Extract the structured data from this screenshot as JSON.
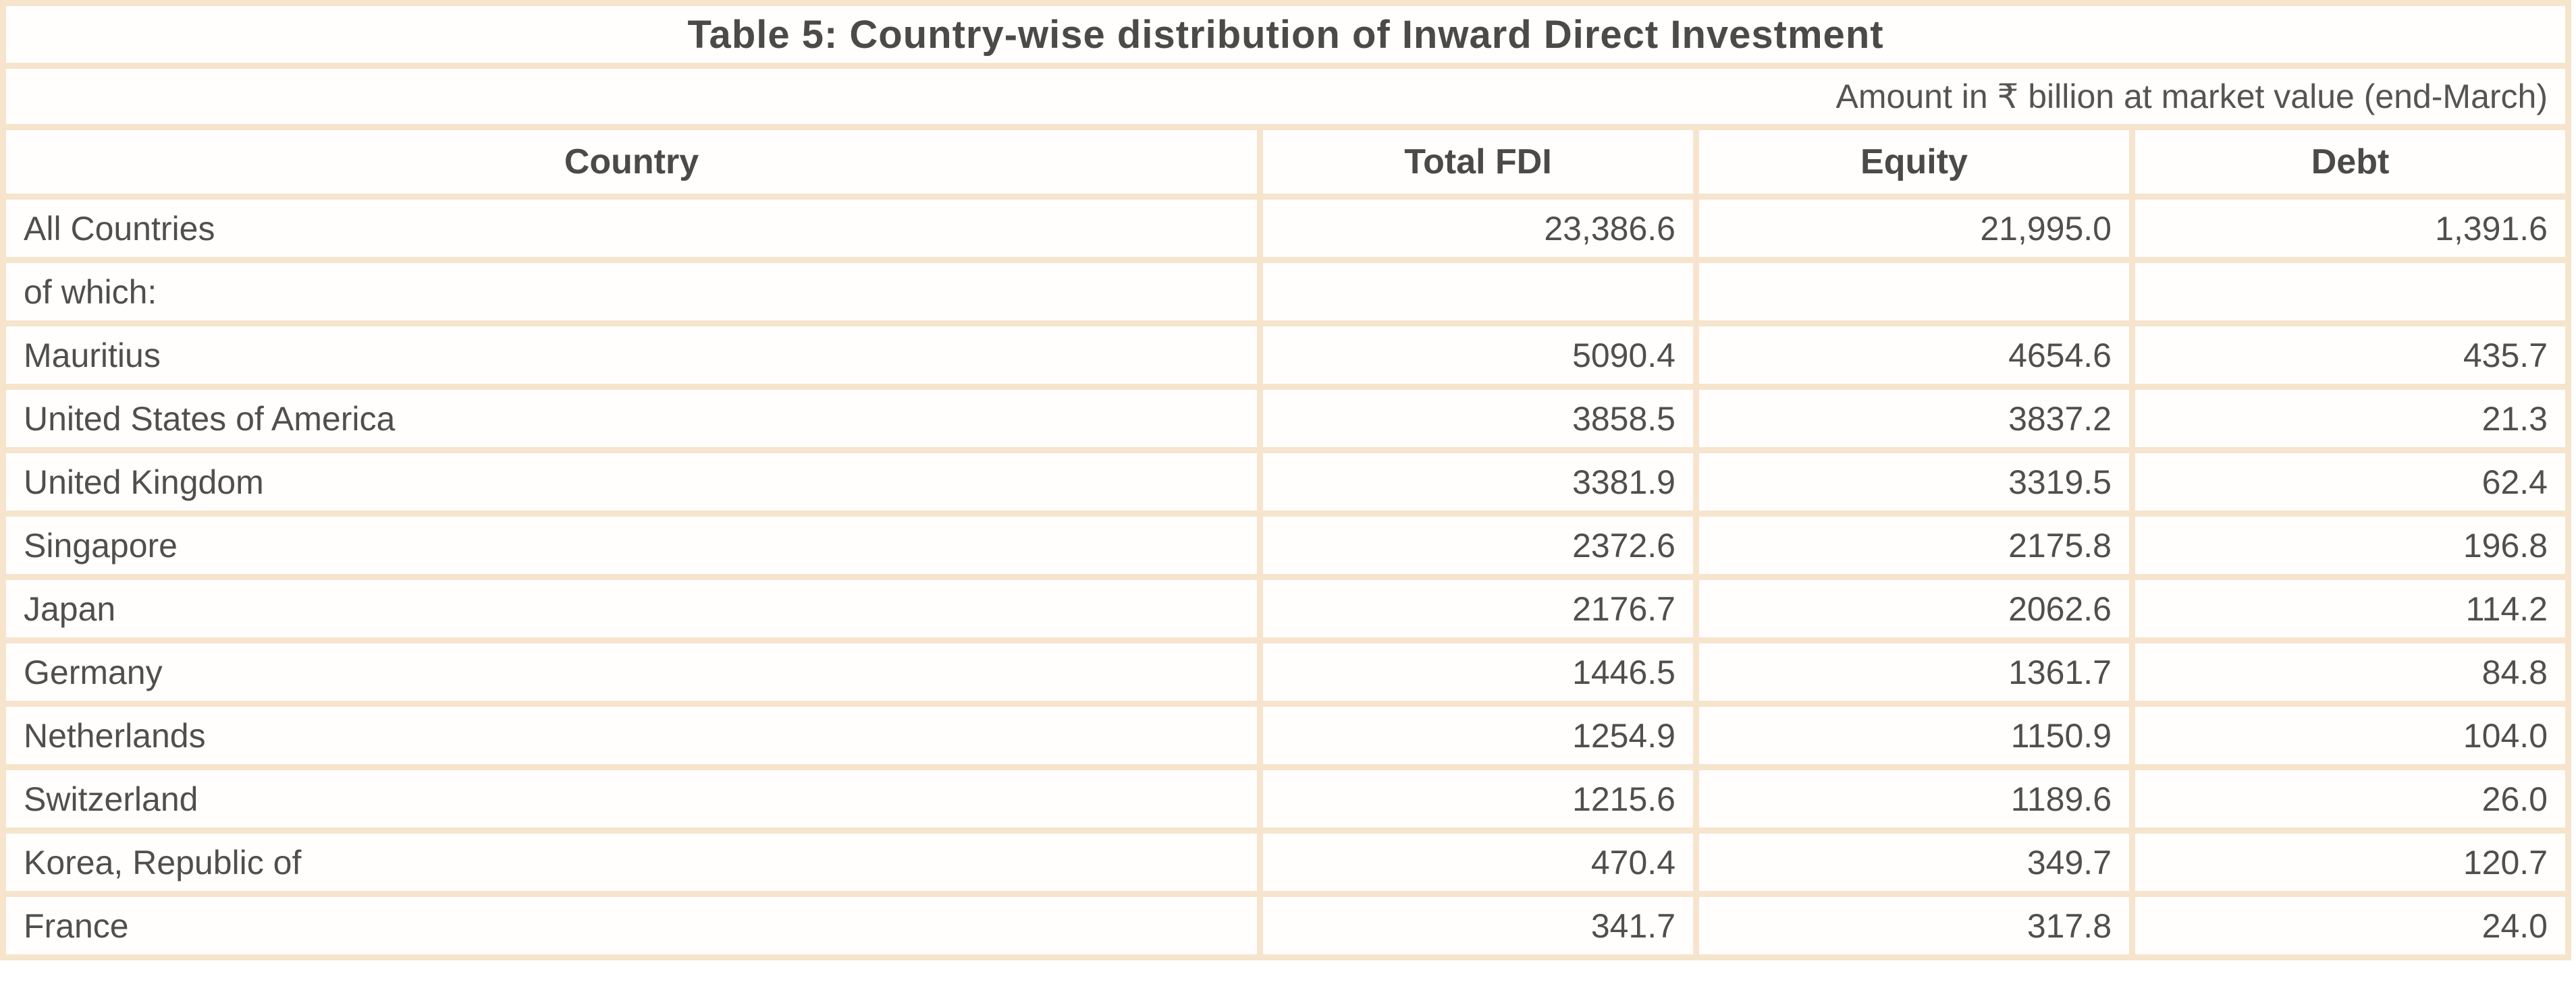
{
  "table": {
    "title": "Table 5: Country-wise distribution of Inward Direct Investment",
    "subtitle": "Amount in ₹ billion at market value (end-March)",
    "columns": {
      "country": "Country",
      "total_fdi": "Total FDI",
      "equity": "Equity",
      "debt": "Debt"
    },
    "rows": [
      {
        "country": "All Countries",
        "total_fdi": "23,386.6",
        "equity": "21,995.0",
        "debt": "1,391.6"
      },
      {
        "country": "of which:",
        "total_fdi": "",
        "equity": "",
        "debt": ""
      },
      {
        "country": "Mauritius",
        "total_fdi": "5090.4",
        "equity": "4654.6",
        "debt": "435.7"
      },
      {
        "country": "United States of America",
        "total_fdi": "3858.5",
        "equity": "3837.2",
        "debt": "21.3"
      },
      {
        "country": "United Kingdom",
        "total_fdi": "3381.9",
        "equity": "3319.5",
        "debt": "62.4"
      },
      {
        "country": "Singapore",
        "total_fdi": "2372.6",
        "equity": "2175.8",
        "debt": "196.8"
      },
      {
        "country": "Japan",
        "total_fdi": "2176.7",
        "equity": "2062.6",
        "debt": "114.2"
      },
      {
        "country": "Germany",
        "total_fdi": "1446.5",
        "equity": "1361.7",
        "debt": "84.8"
      },
      {
        "country": "Netherlands",
        "total_fdi": "1254.9",
        "equity": "1150.9",
        "debt": "104.0"
      },
      {
        "country": "Switzerland",
        "total_fdi": "1215.6",
        "equity": "1189.6",
        "debt": "26.0"
      },
      {
        "country": "Korea, Republic of",
        "total_fdi": "470.4",
        "equity": "349.7",
        "debt": "120.7"
      },
      {
        "country": "France",
        "total_fdi": "341.7",
        "equity": "317.8",
        "debt": "24.0"
      }
    ],
    "colors": {
      "border": "#f6e4cd",
      "text": "#514f4d",
      "background": "#ffffff"
    }
  },
  "chart_data": {
    "type": "table",
    "title": "Table 5: Country-wise distribution of Inward Direct Investment",
    "subtitle": "Amount in ₹ billion at market value (end-March)",
    "categories": [
      "All Countries",
      "of which:",
      "Mauritius",
      "United States of America",
      "United Kingdom",
      "Singapore",
      "Japan",
      "Germany",
      "Netherlands",
      "Switzerland",
      "Korea, Republic of",
      "France"
    ],
    "series": [
      {
        "name": "Total FDI",
        "values": [
          23386.6,
          null,
          5090.4,
          3858.5,
          3381.9,
          2372.6,
          2176.7,
          1446.5,
          1254.9,
          1215.6,
          470.4,
          341.7
        ]
      },
      {
        "name": "Equity",
        "values": [
          21995.0,
          null,
          4654.6,
          3837.2,
          3319.5,
          2175.8,
          2062.6,
          1361.7,
          1150.9,
          1189.6,
          349.7,
          317.8
        ]
      },
      {
        "name": "Debt",
        "values": [
          1391.6,
          null,
          435.7,
          21.3,
          62.4,
          196.8,
          114.2,
          84.8,
          104.0,
          26.0,
          120.7,
          24.0
        ]
      }
    ]
  }
}
